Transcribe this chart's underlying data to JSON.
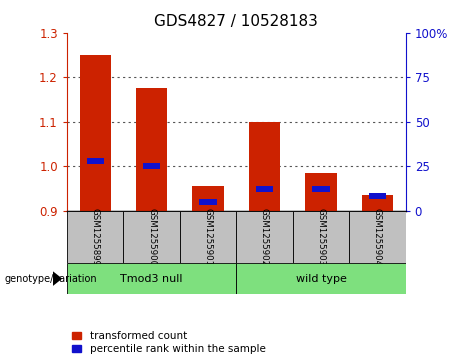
{
  "title": "GDS4827 / 10528183",
  "samples": [
    "GSM1255899",
    "GSM1255900",
    "GSM1255901",
    "GSM1255902",
    "GSM1255903",
    "GSM1255904"
  ],
  "red_values": [
    1.25,
    1.175,
    0.955,
    1.1,
    0.985,
    0.935
  ],
  "blue_values": [
    28,
    25,
    5,
    12,
    12,
    8
  ],
  "ylim_left": [
    0.9,
    1.3
  ],
  "ylim_right": [
    0,
    100
  ],
  "yticks_left": [
    0.9,
    1.0,
    1.1,
    1.2,
    1.3
  ],
  "yticks_right": [
    0,
    25,
    50,
    75,
    100
  ],
  "ytick_labels_right": [
    "0",
    "25",
    "50",
    "75",
    "100%"
  ],
  "baseline": 0.9,
  "groups": [
    {
      "label": "Tmod3 null",
      "indices": [
        0,
        1,
        2
      ]
    },
    {
      "label": "wild type",
      "indices": [
        3,
        4,
        5
      ]
    }
  ],
  "genotype_label": "genotype/variation",
  "legend_red": "transformed count",
  "legend_blue": "percentile rank within the sample",
  "bar_width": 0.55,
  "red_color": "#CC2200",
  "blue_color": "#1111CC",
  "bg_plot": "#FFFFFF",
  "bg_sample_label": "#C0C0C0",
  "bg_group_label": "#7EE07E",
  "dotted_color": "#555555",
  "title_fontsize": 11,
  "tick_fontsize": 8.5
}
